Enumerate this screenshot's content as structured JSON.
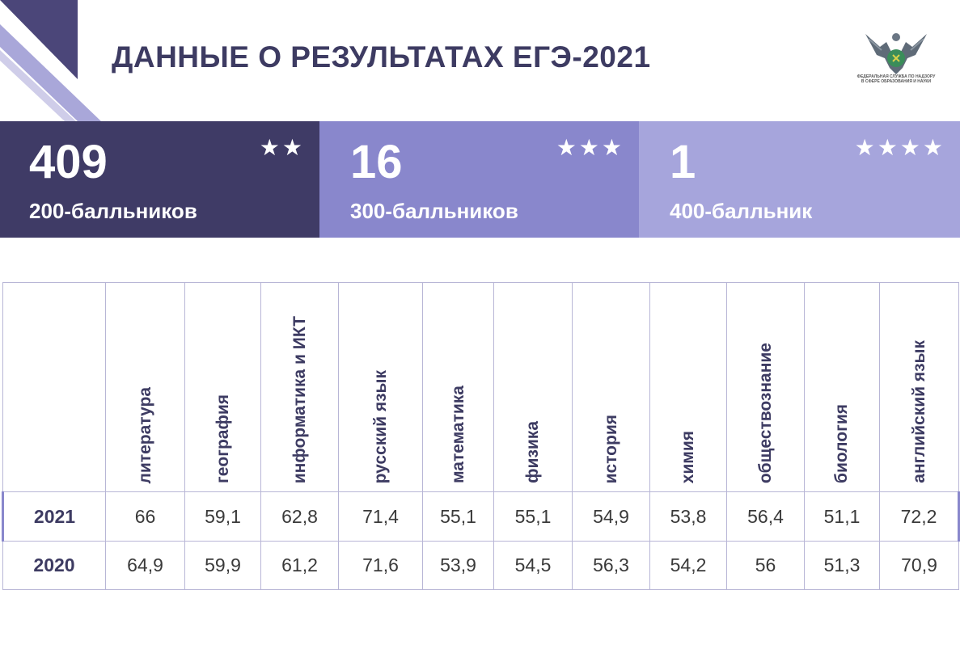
{
  "title": "ДАННЫЕ О РЕЗУЛЬТАТАХ ЕГЭ-2021",
  "logo": {
    "text": "ФЕДЕРАЛЬНАЯ СЛУЖБА ПО НАДЗОРУ В СФЕРЕ ОБРАЗОВАНИЯ И НАУКИ"
  },
  "stats": [
    {
      "value": "409",
      "label": "200-балльников",
      "stars": "★★",
      "color": "#3f3b66"
    },
    {
      "value": "16",
      "label": "300-балльников",
      "stars": "★★★",
      "color": "#8987cc"
    },
    {
      "value": "1",
      "label": "400-балльник",
      "stars": "★★★★",
      "color": "#a6a5dc"
    }
  ],
  "table": {
    "subjects": [
      "литература",
      "география",
      "информатика и ИКТ",
      "русский язык",
      "математика",
      "физика",
      "история",
      "химия",
      "обществознание",
      "биология",
      "английский язык"
    ],
    "rows": [
      {
        "year": "2021",
        "values": [
          "66",
          "59,1",
          "62,8",
          "71,4",
          "55,1",
          "55,1",
          "54,9",
          "53,8",
          "56,4",
          "51,1",
          "72,2"
        ]
      },
      {
        "year": "2020",
        "values": [
          "64,9",
          "59,9",
          "61,2",
          "71,6",
          "53,9",
          "54,5",
          "56,3",
          "54,2",
          "56",
          "51,3",
          "70,9"
        ]
      }
    ]
  }
}
